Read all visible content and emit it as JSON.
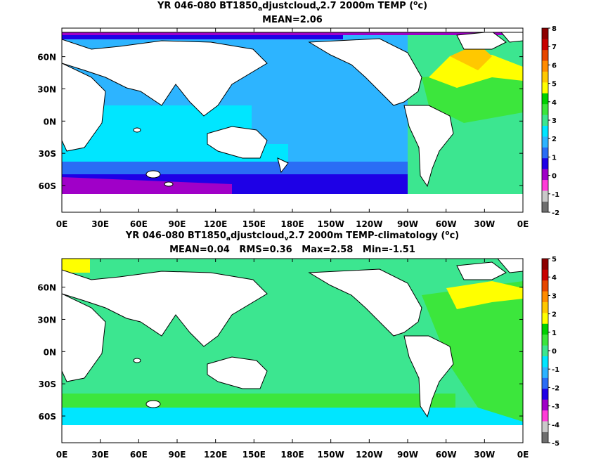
{
  "panels": [
    {
      "title_parts": [
        "YR 046-080 BT1850",
        "a",
        "djustcloud",
        "v",
        "2.7 2000m TEMP (",
        "o",
        "c)"
      ],
      "subtitle": "MEAN=2.06",
      "colorbar_ticks": [
        "8",
        "7",
        "6",
        "5",
        "4",
        "3",
        "2",
        "1",
        "0",
        "-1",
        "-2"
      ]
    },
    {
      "title_parts": [
        "YR 046-080 BT1850",
        "a",
        "djustcloud",
        "v",
        "2.7 2000m TEMP-climatology (",
        "o",
        "c)"
      ],
      "subtitle": "MEAN=0.04   RMS=0.36   Max=2.58   Min=-1.51",
      "colorbar_ticks": [
        "5",
        "4",
        "3",
        "2",
        "1",
        "0",
        "-1",
        "-2",
        "-3",
        "-4",
        "-5"
      ]
    }
  ],
  "axes": {
    "lon_ticks": [
      "0E",
      "30E",
      "60E",
      "90E",
      "120E",
      "150E",
      "180E",
      "150W",
      "120W",
      "90W",
      "60W",
      "30W",
      "0E"
    ],
    "lat_ticks": [
      "60N",
      "30N",
      "0N",
      "30S",
      "60S"
    ]
  },
  "colors": {
    "land": "#ffffff",
    "coast": "#000000",
    "top_colorbar": [
      "#6e6e6e",
      "#c9c9c9",
      "#ff3cd8",
      "#a000c8",
      "#1e00e6",
      "#2a6df5",
      "#2db4ff",
      "#00e6ff",
      "#3ce690",
      "#3ce63c",
      "#00d000",
      "#ffff00",
      "#ffc800",
      "#ff8c00",
      "#e64600",
      "#c80000",
      "#8c0000"
    ],
    "bottom_colorbar": [
      "#6e6e6e",
      "#c9c9c9",
      "#ff3cd8",
      "#a000c8",
      "#1e00e6",
      "#2a6df5",
      "#2db4ff",
      "#00e6ff",
      "#3ce690",
      "#3ce63c",
      "#00d000",
      "#ffff00",
      "#ffc800",
      "#ff8c00",
      "#e64600",
      "#c80000",
      "#8c0000"
    ]
  }
}
